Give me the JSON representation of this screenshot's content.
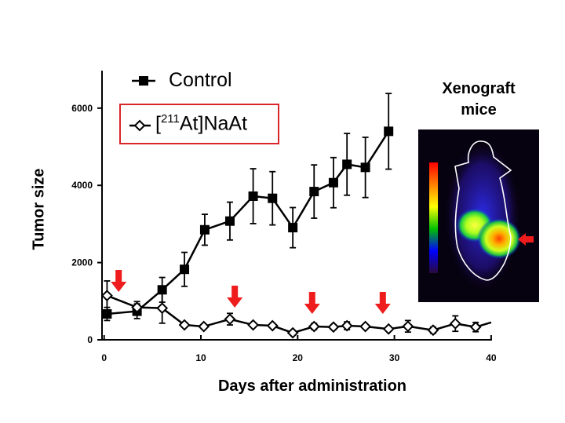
{
  "chart_data": {
    "type": "line",
    "xlabel": "Days after administration",
    "ylabel": "Tumor size",
    "xlim": [
      0,
      40
    ],
    "ylim": [
      0,
      7000
    ],
    "xticks": [
      "0",
      "10",
      "20",
      "30",
      "40"
    ],
    "yticks": [
      "0",
      "2000",
      "4000",
      "6000"
    ],
    "grid": false,
    "legend_placement": "top-left",
    "series": [
      {
        "name": "Control",
        "marker": "filled-square",
        "color": "#000000",
        "x": [
          0.3,
          3.4,
          6.0,
          8.3,
          10.4,
          13.0,
          15.4,
          17.4,
          19.5,
          21.7,
          23.7,
          25.1,
          27.0,
          29.4
        ],
        "y": [
          670,
          740,
          1295,
          1825,
          2850,
          3075,
          3720,
          3665,
          2905,
          3840,
          4070,
          4545,
          4465,
          5400
        ],
        "error": [
          170,
          190,
          320,
          440,
          400,
          490,
          710,
          690,
          520,
          690,
          650,
          800,
          780,
          980
        ]
      },
      {
        "name_prefix": "[",
        "name_superscript": "211",
        "name_suffix": "At]NaAt",
        "marker": "open-diamond",
        "color": "#000000",
        "x": [
          0.3,
          3.4,
          6.0,
          8.3,
          10.3,
          13.0,
          15.4,
          17.4,
          19.5,
          21.7,
          23.7,
          25.1,
          27.0,
          29.4,
          31.4,
          34.0,
          36.3,
          38.4
        ],
        "y": [
          1145,
          840,
          820,
          385,
          345,
          535,
          385,
          365,
          180,
          345,
          330,
          365,
          345,
          280,
          350,
          250,
          420,
          330
        ],
        "error": [
          380,
          150,
          390,
          60,
          40,
          150,
          40,
          40,
          40,
          80,
          60,
          100,
          40,
          40,
          150,
          80,
          200,
          120
        ],
        "line_end": [
          40,
          450
        ]
      }
    ],
    "dosing_days": [
      1.5,
      13.5,
      21.5,
      28.8
    ],
    "arrow_color": "#ee1c1c"
  },
  "inset": {
    "title_line1": "Xenograft",
    "title_line2": "mice",
    "colorbar": [
      "#2a0a3a",
      "#0000ff",
      "#00c000",
      "#ffff00",
      "#ff8000",
      "#ff0000"
    ]
  }
}
